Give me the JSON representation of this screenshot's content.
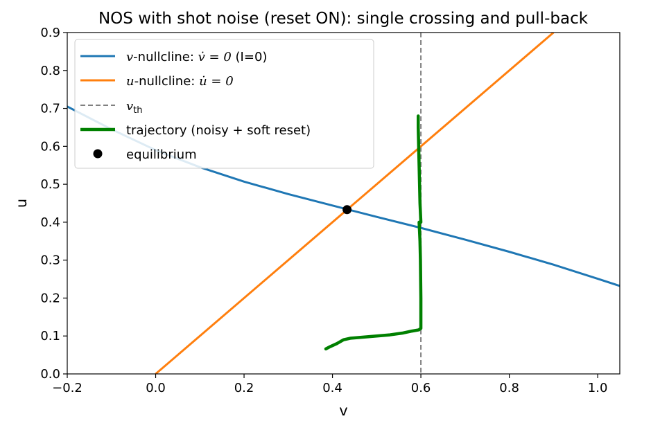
{
  "chart_data": {
    "type": "line",
    "title": "NOS with shot noise (reset ON): single crossing and pull-back",
    "xlabel": "v",
    "ylabel": "u",
    "xlim": [
      -0.2,
      1.05
    ],
    "ylim": [
      0.0,
      0.9
    ],
    "xticks": [
      -0.2,
      0.0,
      0.2,
      0.4,
      0.6,
      0.8,
      1.0
    ],
    "yticks": [
      0.0,
      0.1,
      0.2,
      0.3,
      0.4,
      0.5,
      0.6,
      0.7,
      0.8,
      0.9
    ],
    "xtick_labels": [
      "−0.2",
      "0.0",
      "0.2",
      "0.4",
      "0.6",
      "0.8",
      "1.0"
    ],
    "ytick_labels": [
      "0.0",
      "0.1",
      "0.2",
      "0.3",
      "0.4",
      "0.5",
      "0.6",
      "0.7",
      "0.8",
      "0.9"
    ],
    "grid": false,
    "legend_position": "upper-left",
    "v_threshold": 0.6,
    "series": [
      {
        "name": "v-nullcline",
        "legend_prefix": "v",
        "legend_main": "-nullcline: ",
        "legend_math": "v̇ = 0",
        "legend_suffix": " (I=0)",
        "color": "#1f77b4",
        "style": "solid",
        "x": [
          -0.2,
          -0.1,
          0.0,
          0.1,
          0.2,
          0.3,
          0.4,
          0.5,
          0.6,
          0.7,
          0.8,
          0.9,
          1.0,
          1.05
        ],
        "y": [
          0.705,
          0.645,
          0.59,
          0.545,
          0.507,
          0.474,
          0.444,
          0.414,
          0.385,
          0.354,
          0.322,
          0.288,
          0.251,
          0.232
        ]
      },
      {
        "name": "u-nullcline",
        "legend_prefix": "u",
        "legend_main": "-nullcline: ",
        "legend_math": "u̇ = 0",
        "legend_suffix": "",
        "color": "#ff7f0e",
        "style": "solid",
        "x": [
          0.0,
          0.9
        ],
        "y": [
          0.0,
          0.9
        ]
      },
      {
        "name": "v_th",
        "legend_prefix": "v",
        "legend_sub": "th",
        "color": "#808080",
        "style": "dashed"
      },
      {
        "name": "trajectory (noisy + soft reset)",
        "color": "#008000",
        "style": "thick",
        "x": [
          0.385,
          0.395,
          0.41,
          0.425,
          0.44,
          0.47,
          0.5,
          0.53,
          0.56,
          0.58,
          0.595,
          0.6,
          0.6,
          0.599,
          0.598,
          0.596,
          0.6,
          0.598,
          0.597,
          0.596,
          0.595,
          0.594,
          0.594
        ],
        "y": [
          0.066,
          0.072,
          0.08,
          0.09,
          0.094,
          0.097,
          0.1,
          0.103,
          0.108,
          0.113,
          0.116,
          0.12,
          0.2,
          0.3,
          0.35,
          0.4,
          0.4,
          0.45,
          0.5,
          0.55,
          0.6,
          0.65,
          0.68
        ]
      }
    ],
    "equilibrium": {
      "name": "equilibrium",
      "v": 0.433,
      "u": 0.433,
      "color": "#000000"
    }
  }
}
